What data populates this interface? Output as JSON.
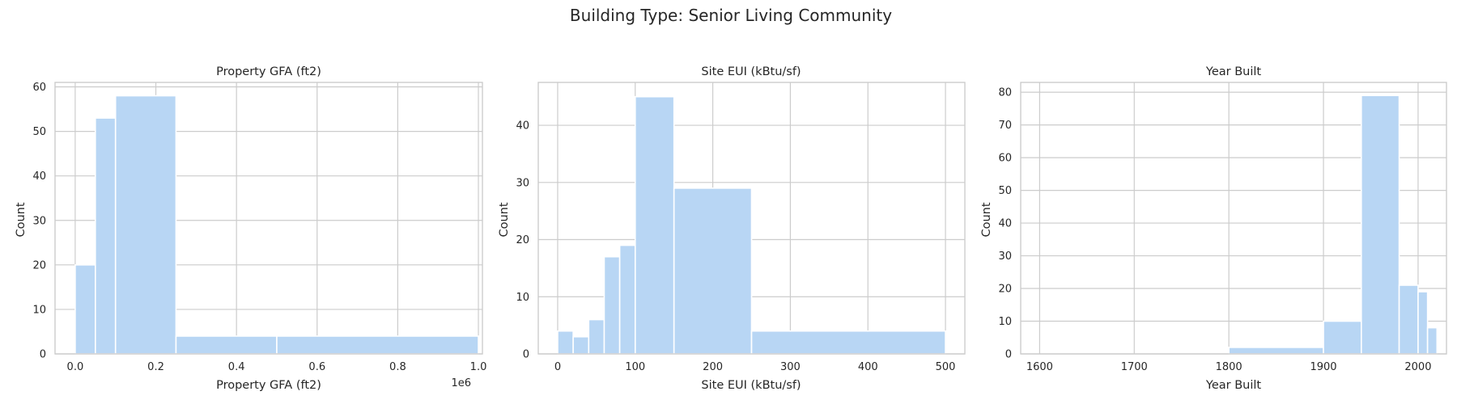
{
  "figure": {
    "suptitle": "Building Type: Senior Living Community",
    "bar_color": "#b8d6f4",
    "grid_color": "#cccccc",
    "background": "#ffffff",
    "grid": true
  },
  "chart_data": [
    {
      "type": "histogram",
      "title": "Property GFA (ft2)",
      "xlabel": "Property GFA (ft2)",
      "ylabel": "Count",
      "x_offset_label": "1e6",
      "xlim": [
        -0.05,
        1.01
      ],
      "ylim": [
        0,
        61
      ],
      "xticks": [
        0.0,
        0.2,
        0.4,
        0.6,
        0.8,
        1.0
      ],
      "xtick_labels": [
        "0.0",
        "0.2",
        "0.4",
        "0.6",
        "0.8",
        "1.0"
      ],
      "yticks": [
        0,
        10,
        20,
        30,
        40,
        50,
        60
      ],
      "ytick_labels": [
        "0",
        "10",
        "20",
        "30",
        "40",
        "50",
        "60"
      ],
      "bins": [
        {
          "x0": 0.0,
          "x1": 0.05,
          "count": 20
        },
        {
          "x0": 0.05,
          "x1": 0.1,
          "count": 53
        },
        {
          "x0": 0.1,
          "x1": 0.25,
          "count": 58
        },
        {
          "x0": 0.25,
          "x1": 0.5,
          "count": 4
        },
        {
          "x0": 0.5,
          "x1": 1.0,
          "count": 4
        }
      ]
    },
    {
      "type": "histogram",
      "title": "Site EUI (kBtu/sf)",
      "xlabel": "Site EUI (kBtu/sf)",
      "ylabel": "Count",
      "x_offset_label": "",
      "xlim": [
        -25,
        525
      ],
      "ylim": [
        0,
        47.5
      ],
      "xticks": [
        0,
        100,
        200,
        300,
        400,
        500
      ],
      "xtick_labels": [
        "0",
        "100",
        "200",
        "300",
        "400",
        "500"
      ],
      "yticks": [
        0,
        10,
        20,
        30,
        40
      ],
      "ytick_labels": [
        "0",
        "10",
        "20",
        "30",
        "40"
      ],
      "bins": [
        {
          "x0": 0,
          "x1": 20,
          "count": 4
        },
        {
          "x0": 20,
          "x1": 40,
          "count": 3
        },
        {
          "x0": 40,
          "x1": 60,
          "count": 6
        },
        {
          "x0": 60,
          "x1": 80,
          "count": 17
        },
        {
          "x0": 80,
          "x1": 100,
          "count": 19
        },
        {
          "x0": 100,
          "x1": 150,
          "count": 45
        },
        {
          "x0": 150,
          "x1": 250,
          "count": 29
        },
        {
          "x0": 250,
          "x1": 500,
          "count": 4
        }
      ]
    },
    {
      "type": "histogram",
      "title": "Year Built",
      "xlabel": "Year Built",
      "ylabel": "Count",
      "x_offset_label": "",
      "xlim": [
        1580,
        2030
      ],
      "ylim": [
        0,
        83
      ],
      "xticks": [
        1600,
        1700,
        1800,
        1900,
        2000
      ],
      "xtick_labels": [
        "1600",
        "1700",
        "1800",
        "1900",
        "2000"
      ],
      "yticks": [
        0,
        10,
        20,
        30,
        40,
        50,
        60,
        70,
        80
      ],
      "ytick_labels": [
        "0",
        "10",
        "20",
        "30",
        "40",
        "50",
        "60",
        "70",
        "80"
      ],
      "bins": [
        {
          "x0": 1600,
          "x1": 1800,
          "count": 0
        },
        {
          "x0": 1800,
          "x1": 1900,
          "count": 2
        },
        {
          "x0": 1900,
          "x1": 1940,
          "count": 10
        },
        {
          "x0": 1940,
          "x1": 1980,
          "count": 79
        },
        {
          "x0": 1980,
          "x1": 2000,
          "count": 21
        },
        {
          "x0": 2000,
          "x1": 2010,
          "count": 19
        },
        {
          "x0": 2010,
          "x1": 2020,
          "count": 8
        }
      ]
    }
  ]
}
